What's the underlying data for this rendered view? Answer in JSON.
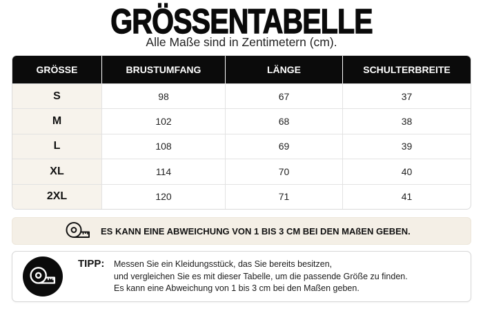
{
  "header": {
    "title": "GRÖSSENTABELLE",
    "subtitle": "Alle Maße sind in Zentimetern (cm)."
  },
  "table": {
    "columns": [
      "GRÖSSE",
      "BRUSTUMFANG",
      "LÄNGE",
      "SCHULTERBREITE"
    ],
    "rows": [
      [
        "S",
        98,
        67,
        37
      ],
      [
        "M",
        102,
        68,
        38
      ],
      [
        "L",
        108,
        69,
        39
      ],
      [
        "XL",
        114,
        70,
        40
      ],
      [
        "2XL",
        120,
        71,
        41
      ]
    ]
  },
  "notice": {
    "icon": "tape-measure-icon",
    "text": "ES KANN EINE ABWEICHUNG VON 1 BIS 3 CM BEI DEN MAßEN GEBEN."
  },
  "tip": {
    "icon": "tape-measure-icon",
    "label": "TIPP:",
    "lines": [
      "Messen Sie ein Kleidungsstück, das Sie bereits besitzen,",
      "und vergleichen Sie es mit dieser Tabelle, um die passende Größe zu finden.",
      "Es kann eine Abweichung von 1 bis 3 cm bei den Maßen geben."
    ]
  },
  "colors": {
    "header_bg": "#0b0b0b",
    "size_column_bg": "#f7f3ec",
    "notice_bg": "#f4efe6",
    "border": "#dadada",
    "text": "#111111"
  }
}
